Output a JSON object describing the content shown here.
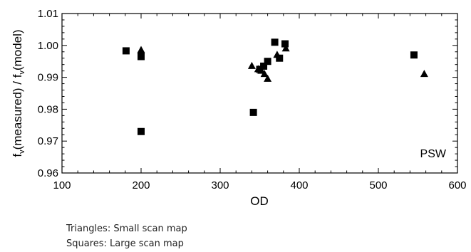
{
  "chart_data": {
    "type": "scatter",
    "xlabel": "OD",
    "ylabel_parts": [
      "f",
      "v",
      "(measured) / f",
      "v",
      "(model)"
    ],
    "xlim": [
      100,
      600
    ],
    "ylim": [
      0.96,
      1.01
    ],
    "x_ticks": [
      100,
      200,
      300,
      400,
      500,
      600
    ],
    "x_tick_labels": [
      "100",
      "200",
      "300",
      "400",
      "500",
      "600"
    ],
    "y_ticks": [
      0.96,
      0.97,
      0.98,
      0.99,
      1.0,
      1.01
    ],
    "y_tick_labels": [
      "0.96",
      "0.97",
      "0.98",
      "0.99",
      "1.00",
      "1.01"
    ],
    "grid": false,
    "annotation": "PSW",
    "series": [
      {
        "marker": "triangle",
        "color": "#000000",
        "points": [
          [
            200,
            0.9985
          ],
          [
            340,
            0.9935
          ],
          [
            348,
            0.9925
          ],
          [
            352,
            0.992
          ],
          [
            356,
            0.991
          ],
          [
            360,
            0.9895
          ],
          [
            372,
            0.997
          ],
          [
            383,
            0.999
          ],
          [
            558,
            0.991
          ]
        ]
      },
      {
        "marker": "square",
        "color": "#000000",
        "points": [
          [
            181,
            0.9983
          ],
          [
            200,
            0.9965
          ],
          [
            200,
            0.973
          ],
          [
            342,
            0.979
          ],
          [
            350,
            0.9925
          ],
          [
            355,
            0.9935
          ],
          [
            360,
            0.995
          ],
          [
            369,
            1.001
          ],
          [
            375,
            0.996
          ],
          [
            382,
            1.0005
          ],
          [
            545,
            0.997
          ]
        ]
      }
    ]
  },
  "captions": {
    "line1": "Triangles: Small scan map",
    "line2": "Squares: Large scan map"
  }
}
